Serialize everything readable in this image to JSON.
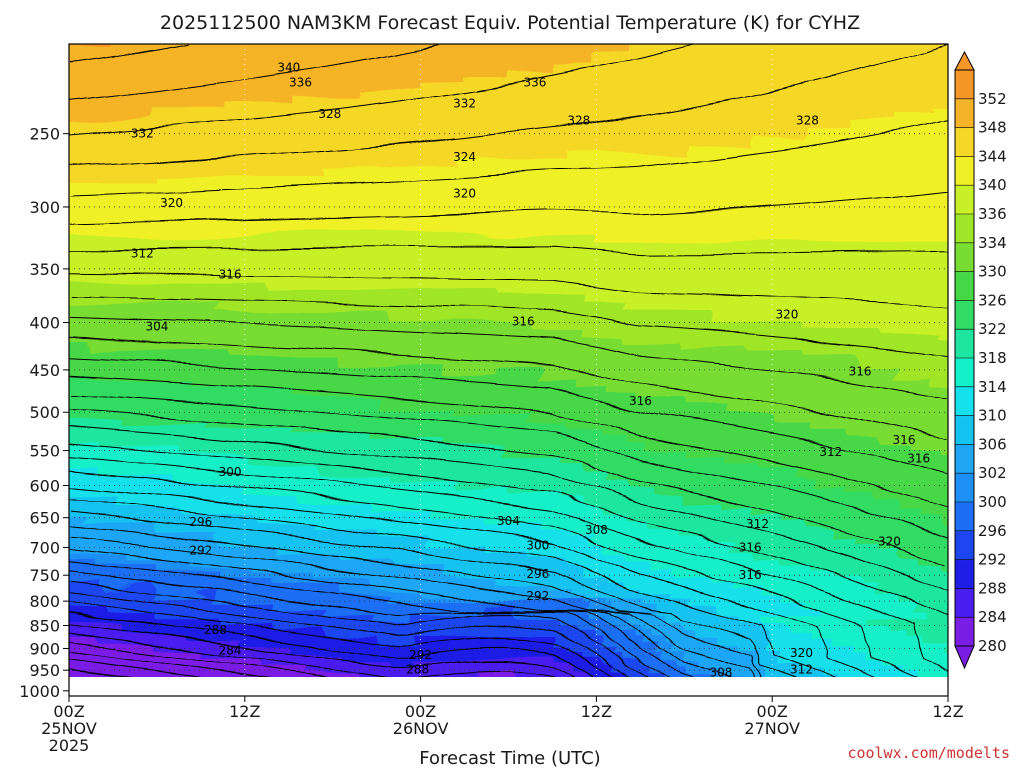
{
  "chart_data": {
    "type": "heatmap",
    "title": "2025112500 NAM3KM Forecast Equiv. Potential Temperature (K) for CYHZ",
    "xlabel": "Forecast Time (UTC)",
    "ylabel": "",
    "credit": "coolwx.com/modelts",
    "x_ticks": [
      {
        "hour": 0,
        "line1": "00Z",
        "line2": "25NOV",
        "line3": "2025"
      },
      {
        "hour": 12,
        "line1": "12Z",
        "line2": "",
        "line3": ""
      },
      {
        "hour": 24,
        "line1": "00Z",
        "line2": "26NOV",
        "line3": ""
      },
      {
        "hour": 36,
        "line1": "12Z",
        "line2": "",
        "line3": ""
      },
      {
        "hour": 48,
        "line1": "00Z",
        "line2": "27NOV",
        "line3": ""
      },
      {
        "hour": 60,
        "line1": "12Z",
        "line2": "",
        "line3": ""
      }
    ],
    "x_range_hours": [
      0,
      60
    ],
    "y_ticks": [
      250,
      300,
      350,
      400,
      450,
      500,
      550,
      600,
      650,
      700,
      750,
      800,
      850,
      900,
      950,
      1000
    ],
    "y_range_hpa": [
      200,
      1013
    ],
    "ground_pressure_hpa": 1000,
    "colorbar": {
      "levels": [
        280,
        284,
        288,
        292,
        296,
        300,
        302,
        306,
        310,
        314,
        318,
        322,
        326,
        330,
        334,
        336,
        340,
        344,
        348,
        352
      ],
      "colors": [
        "#7a1ee6",
        "#4b1ef0",
        "#1e1ee6",
        "#1e46f0",
        "#1e6ef5",
        "#1e8ff5",
        "#1ea6f5",
        "#14c3f0",
        "#14e1eb",
        "#14f0c8",
        "#1ee6a0",
        "#32dc64",
        "#46d746",
        "#78dc32",
        "#a0e628",
        "#c8f028",
        "#f0f028",
        "#f5d728",
        "#f5b428",
        "#f59628"
      ]
    },
    "ground_color": "#a0502d",
    "contour_labels": [
      {
        "value": "340",
        "hour": 15.0,
        "hpa": 212
      },
      {
        "value": "336",
        "hour": 15.8,
        "hpa": 220
      },
      {
        "value": "336",
        "hour": 31.8,
        "hpa": 220
      },
      {
        "value": "332",
        "hour": 27.0,
        "hpa": 232
      },
      {
        "value": "328",
        "hour": 17.8,
        "hpa": 238
      },
      {
        "value": "328",
        "hour": 34.8,
        "hpa": 242
      },
      {
        "value": "328",
        "hour": 50.4,
        "hpa": 242
      },
      {
        "value": "332",
        "hour": 5.0,
        "hpa": 250
      },
      {
        "value": "324",
        "hour": 27.0,
        "hpa": 265
      },
      {
        "value": "320",
        "hour": 27.0,
        "hpa": 290
      },
      {
        "value": "320",
        "hour": 7.0,
        "hpa": 297
      },
      {
        "value": "312",
        "hour": 5.0,
        "hpa": 337
      },
      {
        "value": "316",
        "hour": 11.0,
        "hpa": 355
      },
      {
        "value": "320",
        "hour": 49.0,
        "hpa": 392
      },
      {
        "value": "304",
        "hour": 6.0,
        "hpa": 404
      },
      {
        "value": "316",
        "hour": 31.0,
        "hpa": 399
      },
      {
        "value": "316",
        "hour": 54.0,
        "hpa": 452
      },
      {
        "value": "316",
        "hour": 39.0,
        "hpa": 486
      },
      {
        "value": "316",
        "hour": 57.0,
        "hpa": 536
      },
      {
        "value": "312",
        "hour": 52.0,
        "hpa": 552
      },
      {
        "value": "316",
        "hour": 58.0,
        "hpa": 561
      },
      {
        "value": "300",
        "hour": 11.0,
        "hpa": 580
      },
      {
        "value": "296",
        "hour": 9.0,
        "hpa": 657
      },
      {
        "value": "304",
        "hour": 30.0,
        "hpa": 655
      },
      {
        "value": "308",
        "hour": 36.0,
        "hpa": 670
      },
      {
        "value": "312",
        "hour": 47.0,
        "hpa": 660
      },
      {
        "value": "292",
        "hour": 9.0,
        "hpa": 705
      },
      {
        "value": "300",
        "hour": 32.0,
        "hpa": 697
      },
      {
        "value": "320",
        "hour": 56.0,
        "hpa": 690
      },
      {
        "value": "316",
        "hour": 46.5,
        "hpa": 700
      },
      {
        "value": "296",
        "hour": 32.0,
        "hpa": 748
      },
      {
        "value": "316",
        "hour": 46.5,
        "hpa": 750
      },
      {
        "value": "292",
        "hour": 32.0,
        "hpa": 790
      },
      {
        "value": "288",
        "hour": 10.0,
        "hpa": 860
      },
      {
        "value": "284",
        "hour": 11.0,
        "hpa": 905
      },
      {
        "value": "292",
        "hour": 24.0,
        "hpa": 915
      },
      {
        "value": "320",
        "hour": 50.0,
        "hpa": 910
      },
      {
        "value": "288",
        "hour": 23.8,
        "hpa": 948
      },
      {
        "value": "312",
        "hour": 50.0,
        "hpa": 948
      },
      {
        "value": "308",
        "hour": 44.5,
        "hpa": 955
      }
    ]
  }
}
